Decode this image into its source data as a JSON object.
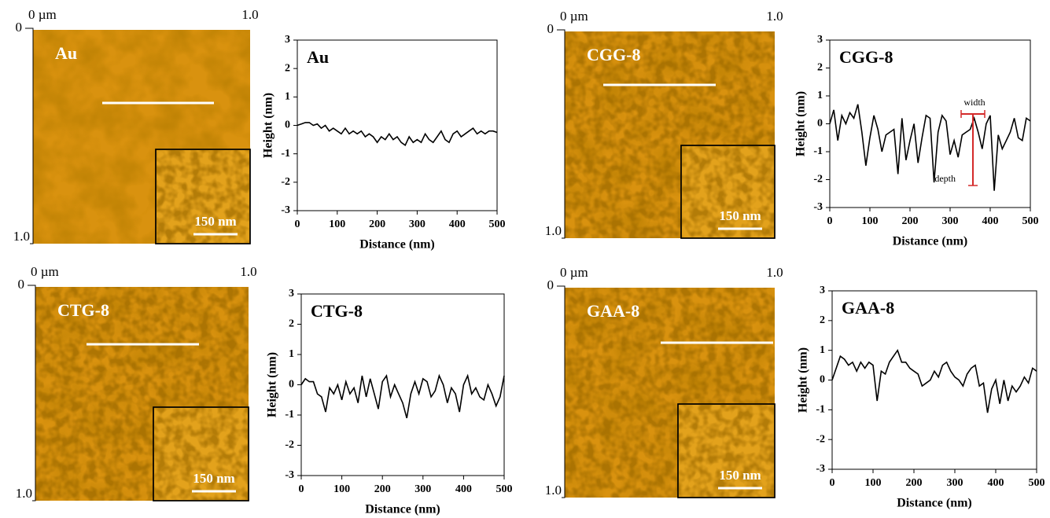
{
  "chart_data": [
    {
      "type": "line",
      "title": "Au",
      "x_label": "Distance (nm)",
      "y_label": "Height (nm)",
      "color": "#000000",
      "x": [
        0,
        10,
        20,
        30,
        40,
        50,
        60,
        70,
        80,
        90,
        100,
        110,
        120,
        130,
        140,
        150,
        160,
        170,
        180,
        190,
        200,
        210,
        220,
        230,
        240,
        250,
        260,
        270,
        280,
        290,
        300,
        310,
        320,
        330,
        340,
        350,
        360,
        370,
        380,
        390,
        400,
        410,
        420,
        430,
        440,
        450,
        460,
        470,
        480,
        490,
        500
      ],
      "values": [
        0,
        0.05,
        0.1,
        0.1,
        0,
        0.05,
        -0.1,
        0,
        -0.2,
        -0.1,
        -0.2,
        -0.3,
        -0.1,
        -0.3,
        -0.2,
        -0.3,
        -0.2,
        -0.4,
        -0.3,
        -0.4,
        -0.6,
        -0.4,
        -0.5,
        -0.3,
        -0.5,
        -0.4,
        -0.6,
        -0.7,
        -0.4,
        -0.6,
        -0.5,
        -0.6,
        -0.3,
        -0.5,
        -0.6,
        -0.4,
        -0.2,
        -0.5,
        -0.6,
        -0.3,
        -0.2,
        -0.4,
        -0.3,
        -0.2,
        -0.1,
        -0.3,
        -0.2,
        -0.3,
        -0.2,
        -0.2,
        -0.25
      ],
      "xlim": [
        0,
        500
      ],
      "xticks": [
        0,
        100,
        200,
        300,
        400,
        500
      ],
      "ylim": [
        -3,
        3
      ],
      "yticks": [
        -3,
        -2,
        -1,
        0,
        1,
        2,
        3
      ]
    },
    {
      "type": "line",
      "title": "CGG-8",
      "x_label": "Distance (nm)",
      "y_label": "Height (nm)",
      "color": "#000000",
      "x": [
        0,
        10,
        20,
        30,
        40,
        50,
        60,
        70,
        80,
        90,
        100,
        110,
        120,
        130,
        140,
        150,
        160,
        170,
        180,
        190,
        200,
        210,
        220,
        230,
        240,
        250,
        260,
        270,
        280,
        290,
        300,
        310,
        320,
        330,
        340,
        350,
        360,
        370,
        380,
        390,
        400,
        410,
        420,
        430,
        440,
        450,
        460,
        470,
        480,
        490,
        500
      ],
      "values": [
        0,
        0.5,
        -0.6,
        0.3,
        0,
        0.4,
        0.2,
        0.7,
        -0.3,
        -1.5,
        -0.5,
        0.3,
        -0.2,
        -1.0,
        -0.4,
        -0.3,
        -0.2,
        -1.8,
        0.2,
        -1.3,
        -0.6,
        0,
        -1.4,
        -0.5,
        0.3,
        0.2,
        -2.1,
        -0.3,
        0.3,
        0.1,
        -1.1,
        -0.6,
        -1.2,
        -0.4,
        -0.3,
        -0.2,
        0.2,
        -0.3,
        -0.9,
        0,
        0.3,
        -2.4,
        -0.4,
        -0.9,
        -0.6,
        -0.3,
        0.2,
        -0.5,
        -0.6,
        0.2,
        0.1
      ],
      "xlim": [
        0,
        500
      ],
      "xticks": [
        0,
        100,
        200,
        300,
        400,
        500
      ],
      "ylim": [
        -3,
        3
      ],
      "yticks": [
        -3,
        -2,
        -1,
        0,
        1,
        2,
        3
      ],
      "annotations": [
        "width",
        "depth"
      ]
    },
    {
      "type": "line",
      "title": "CTG-8",
      "x_label": "Distance (nm)",
      "y_label": "Height (nm)",
      "color": "#000000",
      "x": [
        0,
        10,
        20,
        30,
        40,
        50,
        60,
        70,
        80,
        90,
        100,
        110,
        120,
        130,
        140,
        150,
        160,
        170,
        180,
        190,
        200,
        210,
        220,
        230,
        240,
        250,
        260,
        270,
        280,
        290,
        300,
        310,
        320,
        330,
        340,
        350,
        360,
        370,
        380,
        390,
        400,
        410,
        420,
        430,
        440,
        450,
        460,
        470,
        480,
        490,
        500
      ],
      "values": [
        0,
        0.2,
        0.1,
        0.1,
        -0.3,
        -0.4,
        -0.9,
        -0.1,
        -0.3,
        0,
        -0.5,
        0.1,
        -0.3,
        -0.1,
        -0.6,
        0.3,
        -0.4,
        0.2,
        -0.3,
        -0.8,
        0.1,
        0.3,
        -0.4,
        0,
        -0.3,
        -0.6,
        -1.1,
        -0.3,
        0.1,
        -0.3,
        0.2,
        0.1,
        -0.4,
        -0.2,
        0.3,
        0,
        -0.6,
        -0.1,
        -0.3,
        -0.9,
        0,
        0.3,
        -0.3,
        -0.1,
        -0.4,
        -0.5,
        0,
        -0.3,
        -0.7,
        -0.4,
        0.3
      ],
      "xlim": [
        0,
        500
      ],
      "xticks": [
        0,
        100,
        200,
        300,
        400,
        500
      ],
      "ylim": [
        -3,
        3
      ],
      "yticks": [
        -3,
        -2,
        -1,
        0,
        1,
        2,
        3
      ]
    },
    {
      "type": "line",
      "title": "GAA-8",
      "x_label": "Distance (nm)",
      "y_label": "Height (nm)",
      "color": "#000000",
      "x": [
        0,
        10,
        20,
        30,
        40,
        50,
        60,
        70,
        80,
        90,
        100,
        110,
        120,
        130,
        140,
        150,
        160,
        170,
        180,
        190,
        200,
        210,
        220,
        230,
        240,
        250,
        260,
        270,
        280,
        290,
        300,
        310,
        320,
        330,
        340,
        350,
        360,
        370,
        380,
        390,
        400,
        410,
        420,
        430,
        440,
        450,
        460,
        470,
        480,
        490,
        500
      ],
      "values": [
        0,
        0.4,
        0.8,
        0.7,
        0.5,
        0.6,
        0.3,
        0.6,
        0.4,
        0.6,
        0.5,
        -0.7,
        0.3,
        0.2,
        0.6,
        0.8,
        1.0,
        0.6,
        0.6,
        0.4,
        0.3,
        0.2,
        -0.2,
        -0.1,
        0,
        0.3,
        0.1,
        0.5,
        0.6,
        0.3,
        0.1,
        0,
        -0.2,
        0.2,
        0.4,
        0.5,
        -0.2,
        -0.1,
        -1.1,
        -0.3,
        0,
        -0.8,
        0,
        -0.7,
        -0.2,
        -0.4,
        -0.2,
        0.1,
        -0.1,
        0.4,
        0.3
      ],
      "xlim": [
        0,
        500
      ],
      "xticks": [
        0,
        100,
        200,
        300,
        400,
        500
      ],
      "ylim": [
        -3,
        3
      ],
      "yticks": [
        -3,
        -2,
        -1,
        0,
        1,
        2,
        3
      ]
    }
  ],
  "afm_images": [
    {
      "label": "Au",
      "x_axis_start": "0 µm",
      "x_axis_end": "1.0",
      "y_axis_start": "0",
      "y_axis_end": "1.0",
      "scale_bar": "150 nm"
    },
    {
      "label": "CGG-8",
      "x_axis_start": "0 µm",
      "x_axis_end": "1.0",
      "y_axis_start": "0",
      "y_axis_end": "1.0",
      "scale_bar": "150 nm"
    },
    {
      "label": "CTG-8",
      "x_axis_start": "0 µm",
      "x_axis_end": "1.0",
      "y_axis_start": "0",
      "y_axis_end": "1.0",
      "scale_bar": "150 nm"
    },
    {
      "label": "GAA-8",
      "x_axis_start": "0 µm",
      "x_axis_end": "1.0",
      "y_axis_start": "0",
      "y_axis_end": "1.0",
      "scale_bar": "150 nm"
    }
  ]
}
